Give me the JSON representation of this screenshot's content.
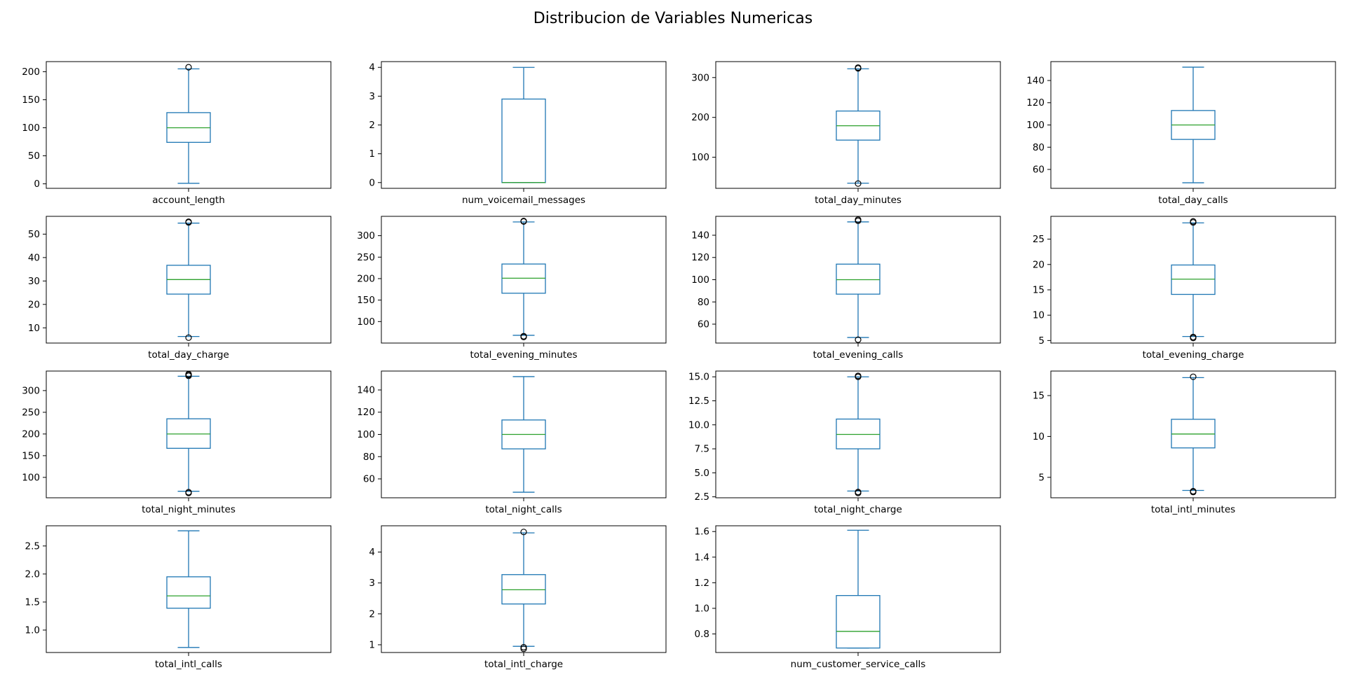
{
  "figure": {
    "title": "Distribucion de Variables Numericas"
  },
  "colors": {
    "box": "#1f77b4",
    "median": "#2ca02c",
    "flier": "#000000",
    "frame": "#000000"
  },
  "chart_data": [
    {
      "type": "box",
      "xlabel": "account_length",
      "ylim": [
        -8,
        218
      ],
      "yticks": [
        0,
        50,
        100,
        150,
        200
      ],
      "tick_labels": [
        "0",
        "50",
        "100",
        "150",
        "200"
      ],
      "stats": {
        "whislo": 1,
        "q1": 74,
        "median": 100,
        "q3": 127,
        "whishi": 205
      },
      "fliers": [
        208
      ]
    },
    {
      "type": "box",
      "xlabel": "num_voicemail_messages",
      "ylim": [
        -0.2,
        4.2
      ],
      "yticks": [
        0,
        1,
        2,
        3,
        4
      ],
      "tick_labels": [
        "0",
        "1",
        "2",
        "3",
        "4"
      ],
      "stats": {
        "whislo": 0,
        "q1": 0,
        "median": 0,
        "q3": 2.9,
        "whishi": 4
      },
      "fliers": []
    },
    {
      "type": "box",
      "xlabel": "total_day_minutes",
      "ylim": [
        22,
        340
      ],
      "yticks": [
        100,
        200,
        300
      ],
      "tick_labels": [
        "100",
        "200",
        "300"
      ],
      "stats": {
        "whislo": 35,
        "q1": 143,
        "median": 179,
        "q3": 216,
        "whishi": 322
      },
      "fliers": [
        34,
        323,
        325
      ]
    },
    {
      "type": "box",
      "xlabel": "total_day_calls",
      "ylim": [
        43,
        157
      ],
      "yticks": [
        60,
        80,
        100,
        120,
        140
      ],
      "tick_labels": [
        "60",
        "80",
        "100",
        "120",
        "140"
      ],
      "stats": {
        "whislo": 48,
        "q1": 87,
        "median": 100,
        "q3": 113,
        "whishi": 152
      },
      "fliers": []
    },
    {
      "type": "box",
      "xlabel": "total_day_charge",
      "ylim": [
        3.5,
        57.6
      ],
      "yticks": [
        10,
        20,
        30,
        40,
        50
      ],
      "tick_labels": [
        "10",
        "20",
        "30",
        "40",
        "50"
      ],
      "stats": {
        "whislo": 6.3,
        "q1": 24.4,
        "median": 30.6,
        "q3": 36.7,
        "whishi": 54.7
      },
      "fliers": [
        5.8,
        55.0,
        55.3
      ]
    },
    {
      "type": "box",
      "xlabel": "total_evening_minutes",
      "ylim": [
        50,
        345
      ],
      "yticks": [
        100,
        150,
        200,
        250,
        300
      ],
      "tick_labels": [
        "100",
        "150",
        "200",
        "250",
        "300"
      ],
      "stats": {
        "whislo": 68,
        "q1": 166,
        "median": 201,
        "q3": 234,
        "whishi": 332
      },
      "fliers": [
        64,
        66,
        333,
        334
      ]
    },
    {
      "type": "box",
      "xlabel": "total_evening_calls",
      "ylim": [
        43,
        157
      ],
      "yticks": [
        60,
        80,
        100,
        120,
        140
      ],
      "tick_labels": [
        "60",
        "80",
        "100",
        "120",
        "140"
      ],
      "stats": {
        "whislo": 48,
        "q1": 87,
        "median": 100,
        "q3": 114,
        "whishi": 152
      },
      "fliers": [
        46,
        153,
        154
      ]
    },
    {
      "type": "box",
      "xlabel": "total_evening_charge",
      "ylim": [
        4.5,
        29.5
      ],
      "yticks": [
        5,
        10,
        15,
        20,
        25
      ],
      "tick_labels": [
        "5",
        "10",
        "15",
        "20",
        "25"
      ],
      "stats": {
        "whislo": 5.8,
        "q1": 14.1,
        "median": 17.1,
        "q3": 19.9,
        "whishi": 28.2
      },
      "fliers": [
        5.5,
        5.7,
        28.3,
        28.5
      ]
    },
    {
      "type": "box",
      "xlabel": "total_night_minutes",
      "ylim": [
        53,
        345
      ],
      "yticks": [
        100,
        150,
        200,
        250,
        300
      ],
      "tick_labels": [
        "100",
        "150",
        "200",
        "250",
        "300"
      ],
      "stats": {
        "whislo": 68,
        "q1": 167,
        "median": 200,
        "q3": 235,
        "whishi": 333
      },
      "fliers": [
        64,
        66,
        334,
        336,
        338
      ]
    },
    {
      "type": "box",
      "xlabel": "total_night_calls",
      "ylim": [
        43,
        157
      ],
      "yticks": [
        60,
        80,
        100,
        120,
        140
      ],
      "tick_labels": [
        "60",
        "80",
        "100",
        "120",
        "140"
      ],
      "stats": {
        "whislo": 48,
        "q1": 87,
        "median": 100,
        "q3": 113,
        "whishi": 152
      },
      "fliers": []
    },
    {
      "type": "box",
      "xlabel": "total_night_charge",
      "ylim": [
        2.4,
        15.6
      ],
      "yticks": [
        2.5,
        5.0,
        7.5,
        10.0,
        12.5,
        15.0
      ],
      "tick_labels": [
        "2.5",
        "5.0",
        "7.5",
        "10.0",
        "12.5",
        "15.0"
      ],
      "stats": {
        "whislo": 3.1,
        "q1": 7.5,
        "median": 9.0,
        "q3": 10.6,
        "whishi": 15.0
      },
      "fliers": [
        2.9,
        3.0,
        15.0,
        15.1
      ]
    },
    {
      "type": "box",
      "xlabel": "total_intl_minutes",
      "ylim": [
        2.5,
        18.0
      ],
      "yticks": [
        5,
        10,
        15
      ],
      "tick_labels": [
        "5",
        "10",
        "15"
      ],
      "stats": {
        "whislo": 3.4,
        "q1": 8.6,
        "median": 10.3,
        "q3": 12.1,
        "whishi": 17.2
      },
      "fliers": [
        3.2,
        3.3,
        17.3
      ]
    },
    {
      "type": "box",
      "xlabel": "total_intl_calls",
      "ylim": [
        0.6,
        2.86
      ],
      "yticks": [
        1.0,
        1.5,
        2.0,
        2.5
      ],
      "tick_labels": [
        "1.0",
        "1.5",
        "2.0",
        "2.5"
      ],
      "stats": {
        "whislo": 0.69,
        "q1": 1.39,
        "median": 1.61,
        "q3": 1.95,
        "whishi": 2.77
      },
      "fliers": []
    },
    {
      "type": "box",
      "xlabel": "total_intl_charge",
      "ylim": [
        0.75,
        4.85
      ],
      "yticks": [
        1,
        2,
        3,
        4
      ],
      "tick_labels": [
        "1",
        "2",
        "3",
        "4"
      ],
      "stats": {
        "whislo": 0.95,
        "q1": 2.32,
        "median": 2.78,
        "q3": 3.27,
        "whishi": 4.62
      },
      "fliers": [
        0.87,
        0.92,
        4.65
      ]
    },
    {
      "type": "box",
      "xlabel": "num_customer_service_calls",
      "ylim": [
        0.655,
        1.645
      ],
      "yticks": [
        0.8,
        1.0,
        1.2,
        1.4,
        1.6
      ],
      "tick_labels": [
        "0.8",
        "1.0",
        "1.2",
        "1.4",
        "1.6"
      ],
      "stats": {
        "whislo": 0.69,
        "q1": 0.69,
        "median": 0.82,
        "q3": 1.1,
        "whishi": 1.61
      },
      "fliers": []
    }
  ]
}
